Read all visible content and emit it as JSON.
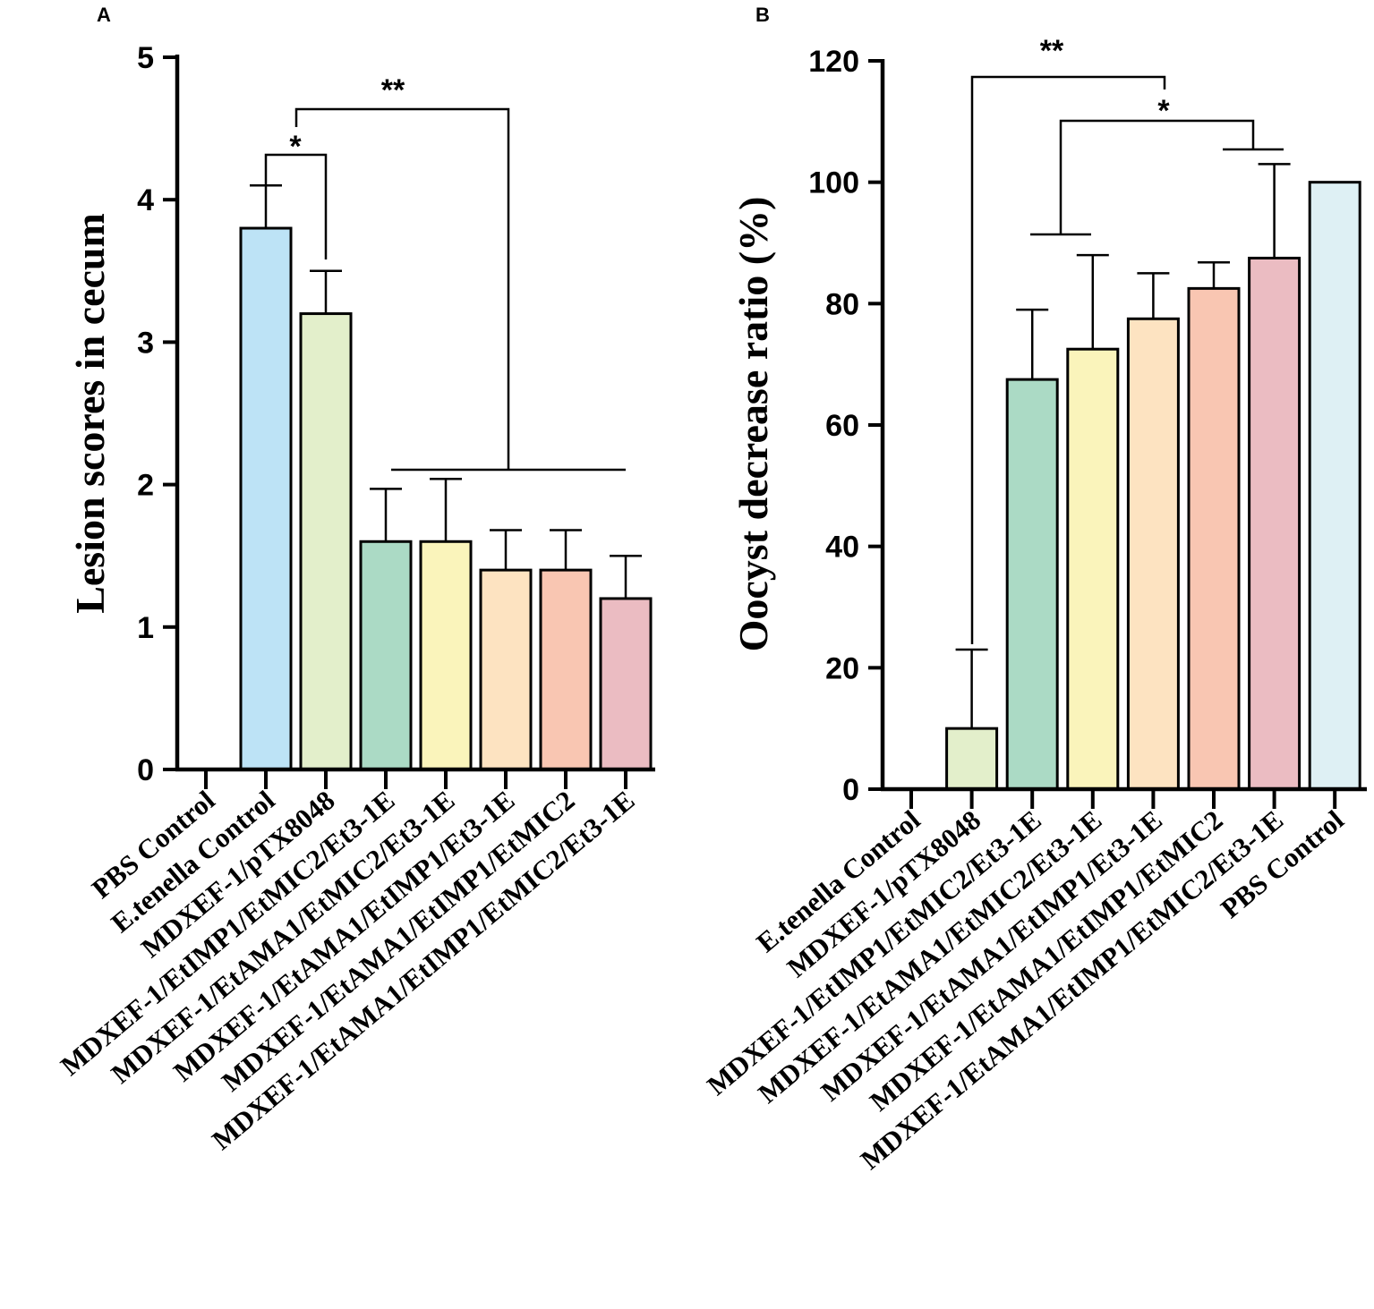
{
  "colors": {
    "bar_stroke": "#000000",
    "background": "#ffffff"
  },
  "chart_data": [
    {
      "panel": "A",
      "type": "bar",
      "title": "",
      "xlabel": "",
      "ylabel": "Lesion scores in cecum",
      "ylim": [
        0,
        5
      ],
      "yticks": [
        "0",
        "1",
        "2",
        "3",
        "4",
        "5"
      ],
      "grid": false,
      "categories": [
        "PBS Control",
        "E.tenella Control",
        "MDXEF-1/pTX8048",
        "MDXEF-1/EtIMP1/EtMIC2/Et3-1E",
        "MDXEF-1/EtAMA1/EtMIC2/Et3-1E",
        "MDXEF-1/EtAMA1/EtIMP1/Et3-1E",
        "MDXEF-1/EtAMA1/EtIMP1/EtMIC2",
        "MDXEF-1/EtAMA1/EtIMP1/EtMIC2/Et3-1E"
      ],
      "values": [
        0,
        3.8,
        3.2,
        1.6,
        1.6,
        1.4,
        1.4,
        1.2
      ],
      "errors": [
        0,
        0.3,
        0.3,
        0.37,
        0.44,
        0.28,
        0.28,
        0.3
      ],
      "colors": [
        "#ffffff",
        "#bde3f6",
        "#e3efcb",
        "#abdac5",
        "#faf4bb",
        "#fde3c1",
        "#f9c6b2",
        "#ebbcc2"
      ],
      "significance": [
        {
          "label": "*",
          "from": 1,
          "to": 2
        },
        {
          "label": "**",
          "from": 2,
          "to_group": [
            3,
            7
          ]
        }
      ]
    },
    {
      "panel": "B",
      "type": "bar",
      "title": "",
      "xlabel": "",
      "ylabel": "Oocyst decrease ratio (%)",
      "ylim": [
        0,
        120
      ],
      "yticks": [
        "0",
        "20",
        "40",
        "60",
        "80",
        "100",
        "120"
      ],
      "grid": false,
      "categories": [
        "E.tenella Control",
        "MDXEF-1/pTX8048",
        "MDXEF-1/EtIMP1/EtMIC2/Et3-1E",
        "MDXEF-1/EtAMA1/EtMIC2/Et3-1E",
        "MDXEF-1/EtAMA1/EtIMP1/Et3-1E",
        "MDXEF-1/EtAMA1/EtIMP1/EtMIC2",
        "MDXEF-1/EtAMA1/EtIMP1/EtMIC2/Et3-1E",
        "PBS Control"
      ],
      "values": [
        0,
        10,
        67.5,
        72.5,
        77.5,
        82.5,
        87.5,
        100
      ],
      "errors": [
        0,
        13,
        11.5,
        15.5,
        7.5,
        4.3,
        15.5,
        0
      ],
      "colors": [
        "#ffffff",
        "#e3efcb",
        "#abdac5",
        "#faf4bb",
        "#fde3c1",
        "#f9c6b2",
        "#ebbcc2",
        "#def0f4"
      ],
      "significance": [
        {
          "label": "**",
          "from": 1,
          "to": 6
        },
        {
          "label": "*",
          "from_group": [
            2,
            3
          ],
          "to": 6
        }
      ]
    }
  ]
}
